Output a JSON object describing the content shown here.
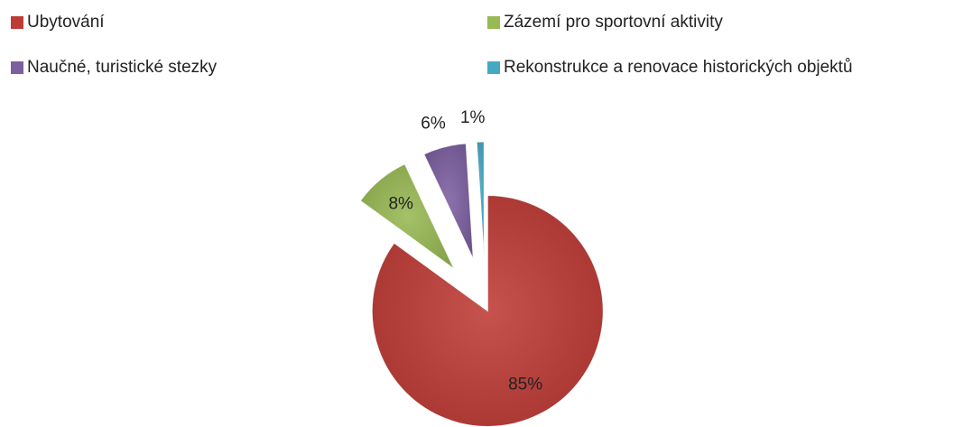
{
  "chart_data": {
    "type": "pie",
    "categories": [
      "Ubytování",
      "Zázemí pro sportovní aktivity",
      "Naučné, turistické stezky",
      "Rekonstrukce a renovace historických objektů"
    ],
    "values": [
      85,
      8,
      6,
      1
    ],
    "value_labels": [
      "85%",
      "8%",
      "6%",
      "1%"
    ],
    "colors": [
      "#be3b36",
      "#98b954",
      "#7d5fa0",
      "#45a9c4"
    ],
    "legend": "top"
  }
}
